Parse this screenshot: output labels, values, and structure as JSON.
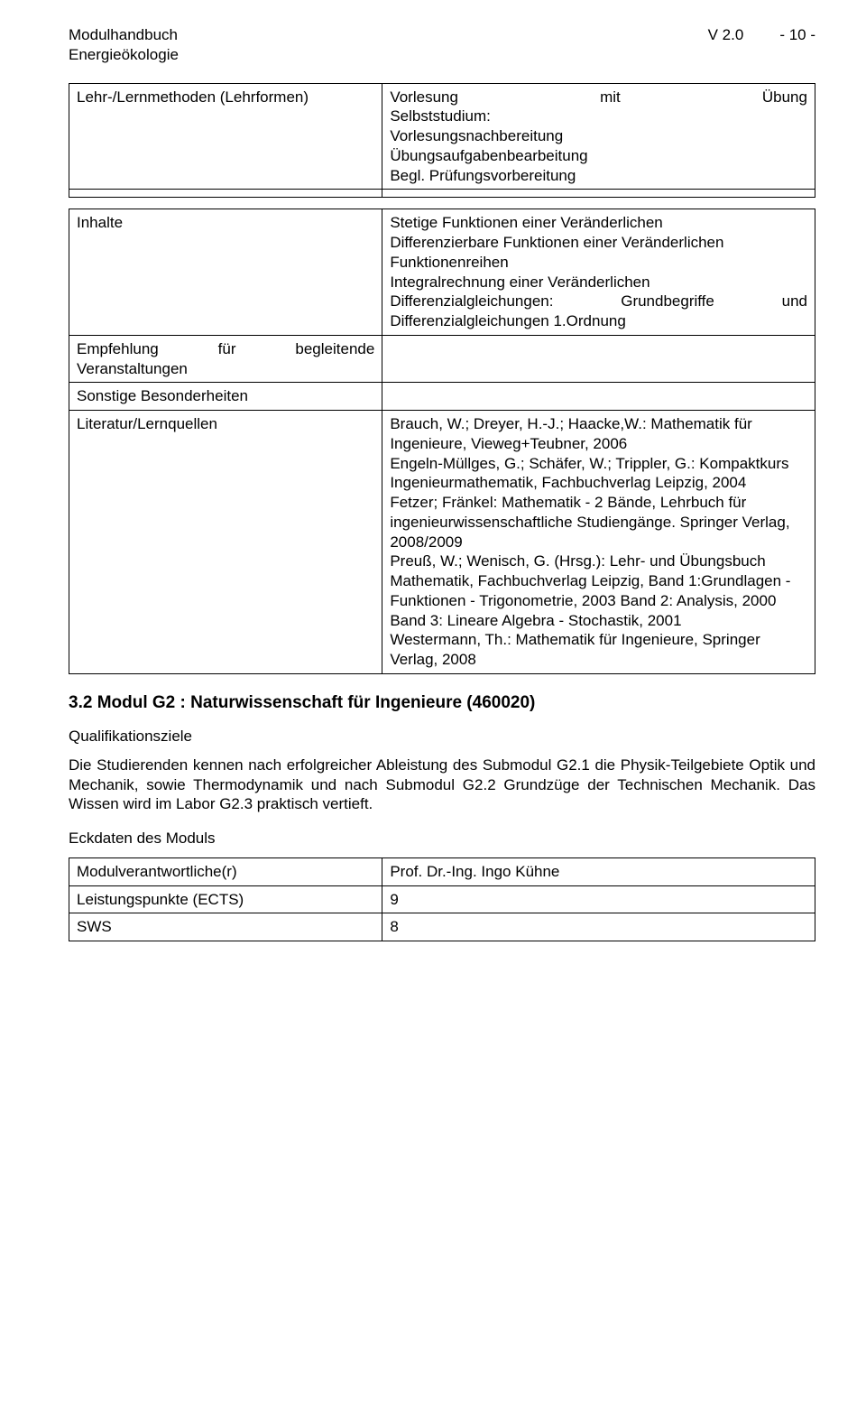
{
  "header": {
    "line1": "Modulhandbuch",
    "line2": "Energieökologie",
    "version": "V 2.0",
    "page": "- 10 -"
  },
  "table1": {
    "row1_label": "Lehr-/Lernmethoden (Lehrformen)",
    "row1_value_l1_left": "Vorlesung",
    "row1_value_l1_mid": "mit",
    "row1_value_l1_right": "Übung",
    "row1_value_l2": "Selbststudium:",
    "row1_value_l3": "Vorlesungsnachbereitung",
    "row1_value_l4": "Übungsaufgabenbearbeitung",
    "row1_value_l5": "Begl. Prüfungsvorbereitung"
  },
  "table2": {
    "inhalte_label": "Inhalte",
    "inhalte_l1": "Stetige Funktionen einer Veränderlichen",
    "inhalte_l2": "Differenzierbare Funktionen einer Veränderlichen",
    "inhalte_l3": "Funktionenreihen",
    "inhalte_l4": "Integralrechnung einer Veränderlichen",
    "inhalte_l5_left": "Differenzialgleichungen:",
    "inhalte_l5_mid": "Grundbegriffe",
    "inhalte_l5_right": "und",
    "inhalte_l6": "Differenzialgleichungen 1.Ordnung",
    "empfehlung_label": "Empfehlung für begleitende Veranstaltungen",
    "sonstige_label": "Sonstige Besonderheiten",
    "literatur_label": "Literatur/Lernquellen",
    "literatur_value": "Brauch, W.; Dreyer, H.-J.; Haacke,W.: Mathematik für Ingenieure, Vieweg+Teubner, 2006\nEngeln-Müllges, G.; Schäfer, W.; Trippler, G.: Kompaktkurs Ingenieurmathematik, Fachbuchverlag Leipzig, 2004\nFetzer; Fränkel: Mathematik - 2 Bände, Lehrbuch für ingenieurwissenschaftliche Studiengänge. Springer Verlag, 2008/2009\nPreuß, W.; Wenisch, G. (Hrsg.): Lehr- und Übungsbuch Mathematik, Fachbuchverlag Leipzig, Band 1:Grundlagen - Funktionen - Trigonometrie, 2003 Band 2: Analysis, 2000 Band 3: Lineare Algebra - Stochastik, 2001\nWestermann, Th.: Mathematik für Ingenieure, Springer Verlag, 2008"
  },
  "section": {
    "heading": "3.2  Modul G2 : Naturwissenschaft für Ingenieure (460020)",
    "qual_label": "Qualifikationsziele",
    "qual_text": "Die Studierenden kennen nach erfolgreicher Ableistung des Submodul G2.1 die Physik-Teilgebiete Optik und Mechanik, sowie Thermodynamik und nach Submodul G2.2 Grundzüge der Technischen Mechanik. Das Wissen wird im Labor G2.3 praktisch vertieft.",
    "eckdaten_label": "Eckdaten des Moduls"
  },
  "table3": {
    "r1_label": "Modulverantwortliche(r)",
    "r1_value": "Prof. Dr.-Ing. Ingo Kühne",
    "r2_label": "Leistungspunkte (ECTS)",
    "r2_value": "9",
    "r3_label": "SWS",
    "r3_value": "8"
  }
}
